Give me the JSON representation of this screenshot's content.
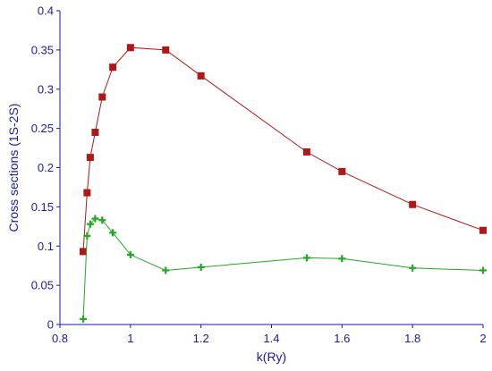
{
  "chart_data": {
    "type": "line",
    "title": "",
    "xlabel": "k(Ry)",
    "ylabel": "Cross sections (1S-2S)",
    "xlim": [
      0.8,
      2.0
    ],
    "ylim": [
      0,
      0.4
    ],
    "x_ticks": [
      "0.8",
      "1",
      "1.2",
      "1.4",
      "1.6",
      "1.8",
      "2"
    ],
    "y_ticks": [
      "0",
      "0.05",
      "0.1",
      "0.15",
      "0.2",
      "0.25",
      "0.3",
      "0.35",
      "0.4"
    ],
    "grid": false,
    "legend": "none",
    "series": [
      {
        "color": "#b01818",
        "marker": "square",
        "x": [
          0.866,
          0.877,
          0.886,
          0.9,
          0.92,
          0.95,
          1.0,
          1.1,
          1.2,
          1.5,
          1.6,
          1.8,
          2.0
        ],
        "y": [
          0.093,
          0.168,
          0.213,
          0.245,
          0.29,
          0.328,
          0.353,
          0.35,
          0.317,
          0.22,
          0.195,
          0.153,
          0.12
        ]
      },
      {
        "color": "#22a822",
        "marker": "plus",
        "x": [
          0.866,
          0.877,
          0.886,
          0.9,
          0.92,
          0.95,
          1.0,
          1.1,
          1.2,
          1.5,
          1.6,
          1.8,
          2.0
        ],
        "y": [
          0.007,
          0.113,
          0.128,
          0.135,
          0.133,
          0.117,
          0.089,
          0.069,
          0.073,
          0.085,
          0.084,
          0.072,
          0.069
        ]
      }
    ],
    "colors": {
      "axis": "#1a1aa6",
      "text": "#1a1aa6"
    }
  }
}
